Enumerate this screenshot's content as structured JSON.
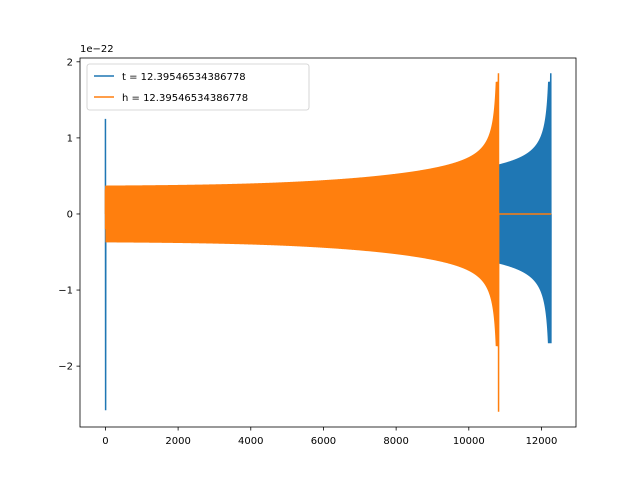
{
  "chart_data": {
    "type": "line",
    "title": "",
    "xlabel": "",
    "ylabel": "",
    "y_offset_label": "1e−22",
    "xlim": [
      -700,
      12950
    ],
    "ylim": [
      -2.8,
      2.05
    ],
    "x_ticks": [
      0,
      2000,
      4000,
      6000,
      8000,
      10000,
      12000
    ],
    "x_tick_labels": [
      "0",
      "2000",
      "4000",
      "6000",
      "8000",
      "10000",
      "12000"
    ],
    "y_ticks": [
      -2,
      -1,
      0,
      1,
      2
    ],
    "y_tick_labels": [
      "−2",
      "−1",
      "0",
      "1",
      "2"
    ],
    "grid": false,
    "legend_position": "top-left",
    "series": [
      {
        "name": "t = 12.39546534386778",
        "color": "#1f77b4",
        "x_range": [
          0,
          12270
        ],
        "chirp_end": 12260,
        "initial_spike": {
          "x": 0,
          "min": -2.58,
          "max": 1.25
        },
        "amplitude_start": 0.32,
        "amplitude_end": 0.54,
        "merger_peak_max": 1.85,
        "merger_peak_min": -1.7
      },
      {
        "name": "h = 12.39546534386778",
        "color": "#ff7f0e",
        "x_range": [
          0,
          10850
        ],
        "chirp_end": 10820,
        "initial_spike": {
          "x": 0,
          "min": -0.2,
          "max": 0.32
        },
        "amplitude_start": 0.32,
        "amplitude_end": 0.54,
        "merger_peak_max": 1.85,
        "merger_peak_min": -2.6,
        "tail_zero_to": 12270
      }
    ]
  }
}
